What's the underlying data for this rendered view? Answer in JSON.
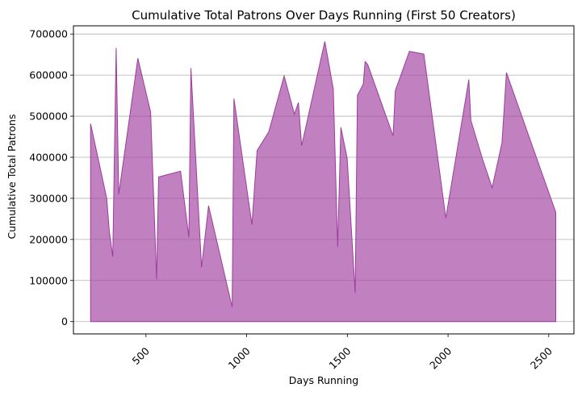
{
  "chart_data": {
    "type": "area",
    "title": "Cumulative Total Patrons Over Days Running (First 50 Creators)",
    "xlabel": "Days Running",
    "ylabel": "Cumulative Total Patrons",
    "xlim": [
      140,
      2625
    ],
    "ylim": [
      -30000,
      720000
    ],
    "xticks": [
      500,
      1000,
      1500,
      2000,
      2500
    ],
    "yticks": [
      0,
      100000,
      200000,
      300000,
      400000,
      500000,
      600000,
      700000
    ],
    "grid": "y-major",
    "fill_color": "#a64ca6",
    "line_color": "#9b3d9b",
    "x": [
      225,
      305,
      318,
      335,
      352,
      365,
      460,
      523,
      553,
      563,
      672,
      713,
      723,
      776,
      811,
      928,
      937,
      1026,
      1052,
      1110,
      1186,
      1237,
      1257,
      1273,
      1388,
      1430,
      1452,
      1468,
      1499,
      1539,
      1550,
      1579,
      1588,
      1601,
      1727,
      1738,
      1808,
      1880,
      1989,
      2103,
      2113,
      2172,
      2219,
      2268,
      2290,
      2535
    ],
    "values": [
      482000,
      300000,
      220000,
      158000,
      666000,
      310000,
      641000,
      510000,
      103000,
      352000,
      366000,
      205000,
      617000,
      132000,
      282000,
      35000,
      543000,
      236000,
      416000,
      462000,
      598000,
      505000,
      533000,
      428000,
      682000,
      566000,
      182000,
      473000,
      397000,
      70000,
      551000,
      578000,
      633000,
      626000,
      452000,
      562000,
      658000,
      651000,
      252000,
      589000,
      490000,
      394000,
      326000,
      436000,
      606000,
      266000
    ]
  }
}
